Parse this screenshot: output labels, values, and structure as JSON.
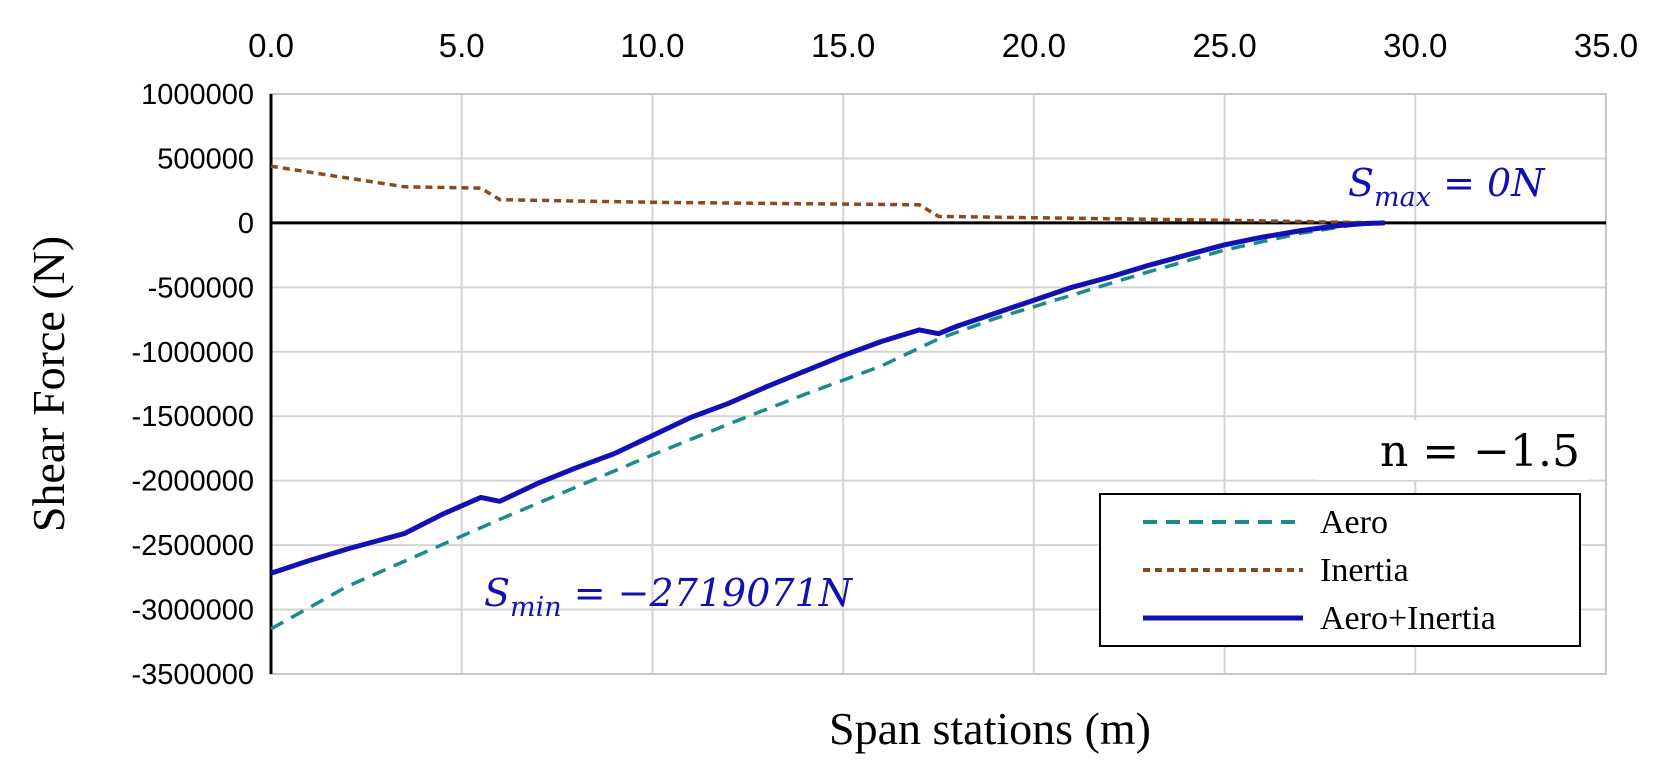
{
  "chart_data": {
    "type": "line",
    "xlabel": "Span stations (m)",
    "ylabel": "Shear Force (N)",
    "xlim": [
      0,
      35
    ],
    "ylim": [
      -3500000,
      1000000
    ],
    "x_ticks": [
      "0.0",
      "5.0",
      "10.0",
      "15.0",
      "20.0",
      "25.0",
      "30.0",
      "35.0"
    ],
    "y_ticks": [
      "1000000",
      "500000",
      "0",
      "-500000",
      "-1000000",
      "-1500000",
      "-2000000",
      "-2500000",
      "-3000000",
      "-3500000"
    ],
    "x_axis_position": "top",
    "grid": true,
    "legend_position": "bottom-right",
    "series": [
      {
        "name": "Aero",
        "color": "#1a8a8a",
        "style": "dashed",
        "x": [
          0,
          2,
          4,
          6,
          8,
          10,
          12,
          14,
          16,
          17.5,
          19,
          21,
          23,
          25,
          27,
          28.5,
          29.2
        ],
        "y": [
          -3150000,
          -2820000,
          -2560000,
          -2300000,
          -2050000,
          -1800000,
          -1560000,
          -1330000,
          -1110000,
          -900000,
          -740000,
          -560000,
          -380000,
          -210000,
          -80000,
          -10000,
          0
        ]
      },
      {
        "name": "Inertia",
        "color": "#8b4a1a",
        "style": "dotted",
        "x": [
          0,
          3.5,
          5.5,
          6,
          10,
          17,
          17.5,
          20,
          25,
          28,
          29.2
        ],
        "y": [
          440000,
          280000,
          270000,
          180000,
          160000,
          140000,
          50000,
          40000,
          20000,
          5000,
          0
        ]
      },
      {
        "name": "Aero+Inertia",
        "color": "#1010b4",
        "style": "solid",
        "x": [
          0,
          1,
          2,
          3.5,
          4.5,
          5.5,
          6,
          7,
          8,
          9,
          10,
          11,
          12,
          13,
          14,
          15,
          16,
          17,
          17.5,
          18,
          19,
          20,
          21,
          22,
          23,
          24,
          25,
          26,
          27,
          28,
          28.7,
          29.2
        ],
        "y": [
          -2719071,
          -2620000,
          -2530000,
          -2410000,
          -2260000,
          -2130000,
          -2160000,
          -2020000,
          -1900000,
          -1790000,
          -1650000,
          -1510000,
          -1400000,
          -1270000,
          -1150000,
          -1030000,
          -920000,
          -830000,
          -860000,
          -800000,
          -700000,
          -600000,
          -500000,
          -420000,
          -330000,
          -250000,
          -170000,
          -110000,
          -60000,
          -20000,
          -5000,
          0
        ]
      }
    ],
    "annotations": {
      "smax": {
        "prefix": "S",
        "sub": "max",
        "text": " = 0N"
      },
      "smin": {
        "prefix": "S",
        "sub": "min",
        "text": " = −2719071N"
      },
      "n": "n = −1.5"
    }
  }
}
